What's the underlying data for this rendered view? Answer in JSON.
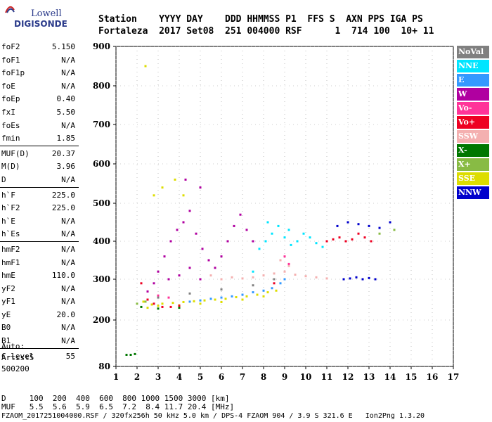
{
  "logo": {
    "line1": "Lowell",
    "line2": "DIGISONDE"
  },
  "header": {
    "labels": "Station    YYYY DAY    DDD HHMMSS P1  FFS S  AXN PPS IGA PS",
    "values": "Fortaleza  2017 Set08  251 004000 RSF      1  714 100  10+ 11"
  },
  "parameters": [
    {
      "name": "foF2",
      "value": "5.150"
    },
    {
      "name": "foF1",
      "value": "N/A"
    },
    {
      "name": "foF1p",
      "value": "N/A"
    },
    {
      "name": "foE",
      "value": "N/A"
    },
    {
      "name": "foEp",
      "value": "0.40"
    },
    {
      "name": "fxI",
      "value": "5.50"
    },
    {
      "name": "foEs",
      "value": "N/A"
    },
    {
      "name": "fmin",
      "value": "1.85"
    },
    {
      "name": "MUF(D)",
      "value": "20.37"
    },
    {
      "name": "M(D)",
      "value": "3.96"
    },
    {
      "name": "D",
      "value": "N/A"
    },
    {
      "name": "h`F",
      "value": "225.0"
    },
    {
      "name": "h`F2",
      "value": "225.0"
    },
    {
      "name": "h`E",
      "value": "N/A"
    },
    {
      "name": "h`Es",
      "value": "N/A"
    },
    {
      "name": "hmF2",
      "value": "N/A"
    },
    {
      "name": "hmF1",
      "value": "N/A"
    },
    {
      "name": "hmE",
      "value": "110.0"
    },
    {
      "name": "yF2",
      "value": "N/A"
    },
    {
      "name": "yF1",
      "value": "N/A"
    },
    {
      "name": "yE",
      "value": "20.0"
    },
    {
      "name": "B0",
      "value": "N/A"
    },
    {
      "name": "B1",
      "value": "N/A"
    },
    {
      "name": "C-level",
      "value": "55"
    }
  ],
  "auto": {
    "line1": "Auto:",
    "line2": "Artist5",
    "line3": "500200"
  },
  "footer": {
    "d_row": "D     100  200  400  600  800 1000 1500 3000 [km]",
    "muf_row": "MUF   5.5  5.6  5.9  6.5  7.2  8.4 11.7 20.4 [MHz]",
    "info": "FZAOM_2017251004000.RSF / 320fx256h 50 kHz 5.0 km / DPS-4 FZAOM 904 / 3.9 S 321.6 E   Ion2Png 1.3.20"
  },
  "legend": [
    {
      "label": "NoVal",
      "color": "#808080"
    },
    {
      "label": "NNE",
      "color": "#00e5ff"
    },
    {
      "label": "E",
      "color": "#3399ff"
    },
    {
      "label": "W",
      "color": "#b000a0"
    },
    {
      "label": "Vo-",
      "color": "#ff3399"
    },
    {
      "label": "Vo+",
      "color": "#ee0022"
    },
    {
      "label": "SSW",
      "color": "#f4b0b0"
    },
    {
      "label": "X-",
      "color": "#007700"
    },
    {
      "label": "X+",
      "color": "#88bb44"
    },
    {
      "label": "SSE",
      "color": "#dddd00"
    },
    {
      "label": "NNW",
      "color": "#0000cc"
    }
  ],
  "chart_data": {
    "type": "scatter",
    "xlim": [
      1,
      17
    ],
    "ylim": [
      80,
      900
    ],
    "x_ticks": [
      "1",
      "2",
      "3",
      "4",
      "5",
      "6",
      "7",
      "8",
      "9",
      "10",
      "11",
      "12",
      "13",
      "14",
      "15",
      "16",
      "17"
    ],
    "y_ticks": [
      "80",
      "200",
      "300",
      "400",
      "500",
      "600",
      "700",
      "800",
      "900"
    ],
    "grid": true,
    "legend_position": "right",
    "series": [
      {
        "name": "SSE",
        "color": "#dddd00",
        "points": [
          [
            2.3,
            245
          ],
          [
            2.7,
            238
          ],
          [
            3.2,
            240
          ],
          [
            3.7,
            242
          ],
          [
            4.2,
            244
          ],
          [
            4.7,
            246
          ],
          [
            5.2,
            248
          ],
          [
            5.7,
            250
          ],
          [
            6.2,
            252
          ],
          [
            6.7,
            256
          ],
          [
            7.2,
            258
          ],
          [
            7.7,
            262
          ],
          [
            8.2,
            268
          ],
          [
            8.6,
            272
          ],
          [
            2.5,
            230
          ],
          [
            3.0,
            235
          ],
          [
            4.0,
            236
          ],
          [
            5.0,
            240
          ],
          [
            6.0,
            244
          ],
          [
            7.0,
            250
          ],
          [
            8.0,
            258
          ],
          [
            2.8,
            520
          ],
          [
            3.2,
            540
          ],
          [
            3.8,
            560
          ],
          [
            4.2,
            520
          ],
          [
            2.4,
            850
          ]
        ]
      },
      {
        "name": "W",
        "color": "#b000a0",
        "points": [
          [
            3.0,
            320
          ],
          [
            3.3,
            360
          ],
          [
            3.6,
            400
          ],
          [
            3.9,
            430
          ],
          [
            4.2,
            450
          ],
          [
            4.5,
            480
          ],
          [
            4.8,
            420
          ],
          [
            5.1,
            380
          ],
          [
            5.4,
            350
          ],
          [
            5.7,
            330
          ],
          [
            6.0,
            360
          ],
          [
            6.3,
            400
          ],
          [
            6.6,
            440
          ],
          [
            6.9,
            470
          ],
          [
            7.2,
            430
          ],
          [
            7.5,
            400
          ],
          [
            3.5,
            300
          ],
          [
            4.0,
            310
          ],
          [
            4.5,
            330
          ],
          [
            5.0,
            300
          ],
          [
            6.0,
            300
          ],
          [
            4.3,
            560
          ],
          [
            5.0,
            540
          ],
          [
            2.5,
            270
          ],
          [
            2.8,
            290
          ]
        ]
      },
      {
        "name": "NNE",
        "color": "#00e5ff",
        "points": [
          [
            7.8,
            380
          ],
          [
            8.1,
            400
          ],
          [
            8.4,
            420
          ],
          [
            8.7,
            440
          ],
          [
            9.0,
            410
          ],
          [
            9.3,
            390
          ],
          [
            9.6,
            400
          ],
          [
            9.9,
            420
          ],
          [
            10.2,
            410
          ],
          [
            10.5,
            395
          ],
          [
            10.8,
            385
          ],
          [
            8.2,
            450
          ],
          [
            9.2,
            430
          ],
          [
            7.5,
            320
          ]
        ]
      },
      {
        "name": "SSW",
        "color": "#f4b0b0",
        "points": [
          [
            6.0,
            300
          ],
          [
            6.5,
            305
          ],
          [
            7.0,
            302
          ],
          [
            7.5,
            305
          ],
          [
            8.0,
            310
          ],
          [
            8.5,
            315
          ],
          [
            9.0,
            320
          ],
          [
            9.5,
            312
          ],
          [
            10.0,
            308
          ],
          [
            10.5,
            305
          ],
          [
            11.0,
            302
          ],
          [
            9.2,
            335
          ],
          [
            8.8,
            350
          ],
          [
            5.5,
            310
          ]
        ]
      },
      {
        "name": "Vo+",
        "color": "#ee0022",
        "points": [
          [
            11.0,
            400
          ],
          [
            11.3,
            405
          ],
          [
            11.6,
            410
          ],
          [
            11.9,
            400
          ],
          [
            12.2,
            405
          ],
          [
            12.5,
            420
          ],
          [
            12.8,
            410
          ],
          [
            13.1,
            400
          ],
          [
            2.2,
            290
          ],
          [
            2.5,
            250
          ],
          [
            2.8,
            240
          ],
          [
            3.2,
            232
          ],
          [
            3.6,
            232
          ],
          [
            4.0,
            235
          ],
          [
            8.5,
            290
          ]
        ]
      },
      {
        "name": "E",
        "color": "#3399ff",
        "points": [
          [
            4.5,
            245
          ],
          [
            5.0,
            248
          ],
          [
            5.5,
            252
          ],
          [
            6.0,
            255
          ],
          [
            6.5,
            258
          ],
          [
            7.0,
            262
          ],
          [
            7.5,
            268
          ],
          [
            8.0,
            272
          ],
          [
            8.4,
            278
          ],
          [
            8.8,
            290
          ],
          [
            9.0,
            300
          ]
        ]
      },
      {
        "name": "NNW",
        "color": "#0000cc",
        "points": [
          [
            11.8,
            300
          ],
          [
            12.1,
            302
          ],
          [
            12.4,
            305
          ],
          [
            12.7,
            300
          ],
          [
            13.0,
            303
          ],
          [
            13.3,
            300
          ],
          [
            11.5,
            440
          ],
          [
            12.0,
            450
          ],
          [
            12.5,
            445
          ],
          [
            13.0,
            440
          ],
          [
            13.5,
            435
          ],
          [
            14.0,
            450
          ]
        ]
      },
      {
        "name": "X-",
        "color": "#007700",
        "points": [
          [
            1.5,
            110
          ],
          [
            1.7,
            110
          ],
          [
            1.9,
            112
          ],
          [
            2.2,
            232
          ],
          [
            3.0,
            228
          ],
          [
            4.0,
            230
          ]
        ]
      },
      {
        "name": "X+",
        "color": "#88bb44",
        "points": [
          [
            2.0,
            240
          ],
          [
            2.4,
            245
          ],
          [
            13.5,
            420
          ],
          [
            14.2,
            430
          ]
        ]
      },
      {
        "name": "Vo-",
        "color": "#ff3399",
        "points": [
          [
            3.0,
            260
          ],
          [
            3.5,
            255
          ],
          [
            9.0,
            360
          ],
          [
            9.2,
            340
          ]
        ]
      },
      {
        "name": "NoVal",
        "color": "#808080",
        "points": [
          [
            3.0,
            255
          ],
          [
            4.5,
            265
          ],
          [
            6.0,
            275
          ],
          [
            7.5,
            285
          ],
          [
            8.5,
            300
          ]
        ]
      }
    ]
  }
}
